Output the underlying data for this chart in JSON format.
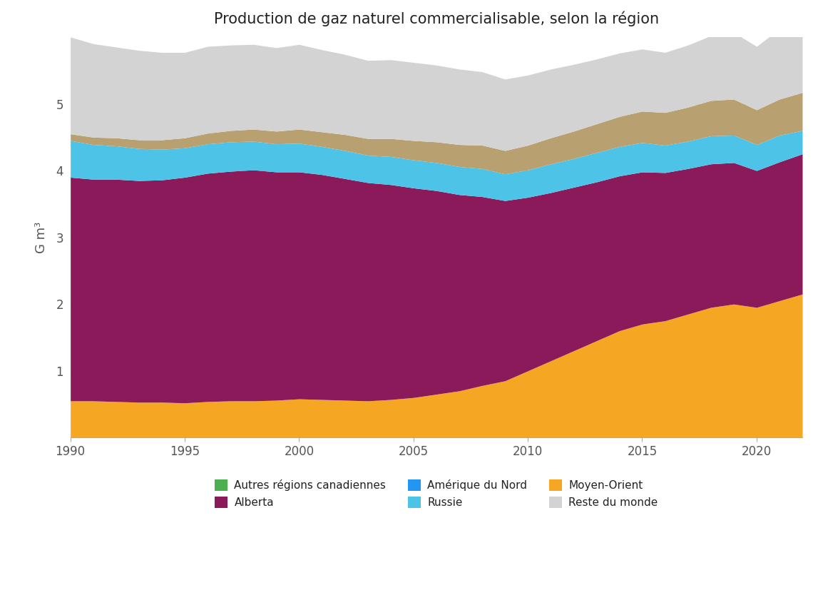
{
  "title": "Production de gaz naturel commercialisable, selon la région",
  "ylabel": "G m³",
  "years": [
    1990,
    1991,
    1992,
    1993,
    1994,
    1995,
    1996,
    1997,
    1998,
    1999,
    2000,
    2001,
    2002,
    2003,
    2004,
    2005,
    2006,
    2007,
    2008,
    2009,
    2010,
    2011,
    2012,
    2013,
    2014,
    2015,
    2016,
    2017,
    2018,
    2019,
    2020,
    2021,
    2022
  ],
  "series": {
    "Amérique du Nord (hors Canada)": [
      0.55,
      0.55,
      0.54,
      0.53,
      0.53,
      0.52,
      0.54,
      0.55,
      0.55,
      0.56,
      0.58,
      0.57,
      0.56,
      0.55,
      0.57,
      0.6,
      0.65,
      0.7,
      0.78,
      0.85,
      1.0,
      1.15,
      1.3,
      1.45,
      1.6,
      1.7,
      1.75,
      1.85,
      1.95,
      2.0,
      1.95,
      2.05,
      2.15
    ],
    "Alberta": [
      3.35,
      3.32,
      3.33,
      3.32,
      3.33,
      3.38,
      3.42,
      3.44,
      3.46,
      3.42,
      3.4,
      3.37,
      3.32,
      3.27,
      3.22,
      3.14,
      3.05,
      2.94,
      2.83,
      2.7,
      2.6,
      2.52,
      2.45,
      2.38,
      2.32,
      2.28,
      2.22,
      2.18,
      2.15,
      2.12,
      2.05,
      2.08,
      2.1
    ],
    "Russie": [
      0.55,
      0.52,
      0.5,
      0.48,
      0.46,
      0.44,
      0.44,
      0.44,
      0.43,
      0.42,
      0.43,
      0.42,
      0.42,
      0.41,
      0.42,
      0.42,
      0.42,
      0.42,
      0.42,
      0.4,
      0.41,
      0.43,
      0.43,
      0.44,
      0.44,
      0.44,
      0.41,
      0.41,
      0.42,
      0.41,
      0.39,
      0.4,
      0.35
    ],
    "Moyen-Orient": [
      0.1,
      0.11,
      0.12,
      0.13,
      0.14,
      0.15,
      0.16,
      0.17,
      0.18,
      0.19,
      0.21,
      0.22,
      0.24,
      0.25,
      0.27,
      0.29,
      0.31,
      0.33,
      0.35,
      0.35,
      0.37,
      0.39,
      0.41,
      0.43,
      0.45,
      0.47,
      0.49,
      0.51,
      0.53,
      0.54,
      0.52,
      0.54,
      0.57
    ],
    "Reste du monde": [
      1.45,
      1.4,
      1.36,
      1.34,
      1.31,
      1.28,
      1.3,
      1.28,
      1.27,
      1.25,
      1.27,
      1.23,
      1.2,
      1.17,
      1.18,
      1.17,
      1.15,
      1.13,
      1.1,
      1.07,
      1.05,
      1.03,
      1.0,
      0.97,
      0.95,
      0.93,
      0.9,
      0.93,
      0.97,
      1.0,
      0.95,
      1.05,
      1.15
    ]
  },
  "colors": {
    "Amérique du Nord (hors Canada)": "#f5a623",
    "Alberta": "#8b1a5a",
    "Russie": "#4dc3e8",
    "Moyen-Orient": "#b8a070",
    "Reste du monde": "#d3d3d3"
  },
  "legend_items": [
    {
      "label": "Autres régions canadiennes",
      "color": "#4CAF50",
      "marker": "square"
    },
    {
      "label": "Alberta",
      "color": "#8b1a5a",
      "marker": "pentagon"
    },
    {
      "label": "Amérique du Nord",
      "color": "#2196F3",
      "marker": "combo_blue_purple"
    },
    {
      "label": "Russie",
      "color": "#4dc3e8",
      "marker": "combo_cyan_orange"
    },
    {
      "label": "Moyen-Orient",
      "color": "#b8a070",
      "marker": "combo_tan_gray"
    },
    {
      "label": "Reste du monde",
      "color": "#d3d3d3",
      "marker": "gray_shape"
    }
  ],
  "ylim": [
    0,
    6
  ],
  "ytick_values": [
    1,
    2,
    3,
    4,
    5
  ],
  "xlim": [
    1990,
    2022
  ],
  "background_color": "#ffffff",
  "stack_order": [
    "Amérique du Nord (hors Canada)",
    "Alberta",
    "Russie",
    "Moyen-Orient",
    "Reste du monde"
  ],
  "xtick_years": [
    1990,
    1995,
    2000,
    2005,
    2010,
    2015,
    2020
  ]
}
